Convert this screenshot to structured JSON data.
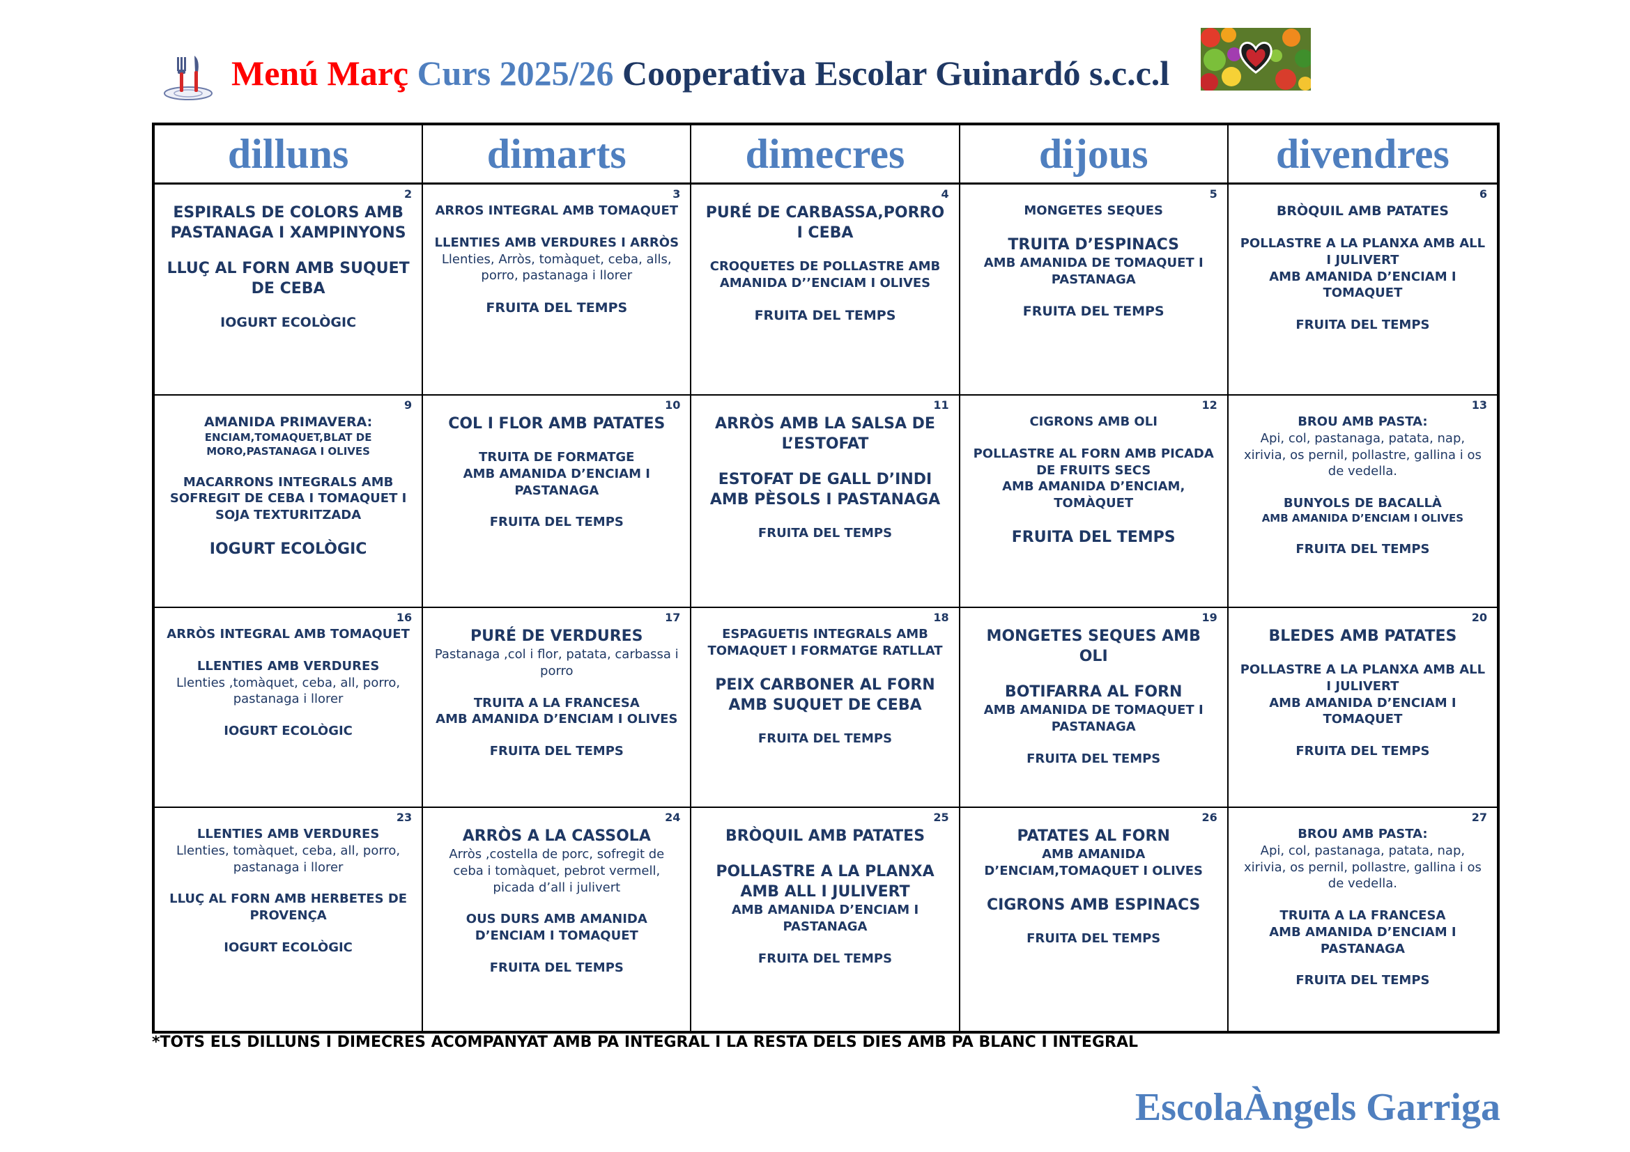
{
  "header": {
    "title_part1": "Menú Març",
    "title_part2": "Curs 2025/26",
    "title_part3": "Cooperativa Escolar Guinardó s.c.c.l",
    "left_icon": "cutlery-plate-icon",
    "right_icon": "vegetables-heart-icon"
  },
  "days": [
    "dilluns",
    "dimarts",
    "dimecres",
    "dijous",
    "divendres"
  ],
  "weeks": [
    [
      {
        "num": "2",
        "items": [
          {
            "t": "ESPIRALS DE COLORS AMB PASTANAGA I XAMPINYONS",
            "s": "L"
          },
          {
            "gap": 1
          },
          {
            "t": "LLUÇ AL FORN AMB SUQUET DE CEBA",
            "s": "L"
          },
          {
            "gap": 1
          },
          {
            "t": "IOGURT ECOLÒGIC",
            "s": "M"
          }
        ]
      },
      {
        "num": "3",
        "items": [
          {
            "t": "ARROS INTEGRAL AMB TOMAQUET",
            "s": "S"
          },
          {
            "gap": 1
          },
          {
            "t": "LLENTIES AMB VERDURES I ARRÒS",
            "s": "S"
          },
          {
            "t": "Llenties, Arròs, tomàquet, ceba, alls, porro, pastanaga i llorer",
            "s": "D"
          },
          {
            "gap": 1
          },
          {
            "t": "FRUITA DEL TEMPS",
            "s": "M"
          }
        ]
      },
      {
        "num": "4",
        "items": [
          {
            "t": "PURÉ DE CARBASSA,PORRO I CEBA",
            "s": "L"
          },
          {
            "gap": 1
          },
          {
            "t": "CROQUETES DE POLLASTRE AMB",
            "s": "S"
          },
          {
            "t": "AMANIDA D’’ENCIAM I OLIVES",
            "s": "S"
          },
          {
            "gap": 1
          },
          {
            "t": "FRUITA DEL TEMPS",
            "s": "M"
          }
        ]
      },
      {
        "num": "5",
        "items": [
          {
            "t": "MONGETES SEQUES",
            "s": "S"
          },
          {
            "gap": 1
          },
          {
            "t": "TRUITA D’ESPINACS",
            "s": "L"
          },
          {
            "t": "AMB AMANIDA DE TOMAQUET I PASTANAGA",
            "s": "S"
          },
          {
            "gap": 1
          },
          {
            "t": "FRUITA DEL TEMPS",
            "s": "M"
          }
        ]
      },
      {
        "num": "6",
        "items": [
          {
            "t": "BRÒQUIL AMB PATATES",
            "s": "M"
          },
          {
            "gap": 1
          },
          {
            "t": "POLLASTRE A LA PLANXA   AMB ALL I JULIVERT",
            "s": "S"
          },
          {
            "t": "AMB AMANIDA D’ENCIAM I TOMAQUET",
            "s": "S"
          },
          {
            "gap": 1
          },
          {
            "t": "FRUITA DEL TEMPS",
            "s": "S"
          }
        ]
      }
    ],
    [
      {
        "num": "9",
        "items": [
          {
            "t": "AMANIDA PRIMAVERA:",
            "s": "M"
          },
          {
            "t": "ENCIAM,TOMAQUET,BLAT DE MORO,PASTANAGA I OLIVES",
            "s": "T"
          },
          {
            "gap": 1
          },
          {
            "t": "MACARRONS INTEGRALS AMB SOFREGIT DE CEBA I TOMAQUET I SOJA TEXTURITZADA",
            "s": "S"
          },
          {
            "gap": 1
          },
          {
            "t": "IOGURT ECOLÒGIC",
            "s": "L"
          }
        ]
      },
      {
        "num": "10",
        "items": [
          {
            "t": "COL I FLOR AMB PATATES",
            "s": "L"
          },
          {
            "gap": 1
          },
          {
            "t": "TRUITA DE FORMATGE",
            "s": "S"
          },
          {
            "t": "AMB AMANIDA D’ENCIAM I PASTANAGA",
            "s": "S"
          },
          {
            "gap": 1
          },
          {
            "t": "FRUITA DEL TEMPS",
            "s": "S"
          }
        ]
      },
      {
        "num": "11",
        "items": [
          {
            "t": "ARRÒS AMB LA SALSA DE L’ESTOFAT",
            "s": "L"
          },
          {
            "gap": 1
          },
          {
            "t": "ESTOFAT DE GALL D’INDI AMB PÈSOLS I PASTANAGA",
            "s": "L"
          },
          {
            "gap": 1
          },
          {
            "t": "FRUITA DEL TEMPS",
            "s": "S"
          }
        ]
      },
      {
        "num": "12",
        "items": [
          {
            "t": "CIGRONS AMB OLI",
            "s": "S"
          },
          {
            "gap": 1
          },
          {
            "t": "POLLASTRE AL FORN AMB PICADA DE FRUITS SECS",
            "s": "S"
          },
          {
            "t": "AMB AMANIDA D’ENCIAM, TOMÀQUET",
            "s": "S"
          },
          {
            "gap": 1
          },
          {
            "t": "FRUITA DEL TEMPS",
            "s": "L"
          }
        ]
      },
      {
        "num": "13",
        "items": [
          {
            "t": "BROU AMB PASTA:",
            "s": "S"
          },
          {
            "t": "Api, col, pastanaga, patata, nap, xirivia, os pernil, pollastre, gallina i os de vedella.",
            "s": "D"
          },
          {
            "gap": 1
          },
          {
            "t": "BUNYOLS DE BACALLÀ",
            "s": "S"
          },
          {
            "t": "AMB AMANIDA D’ENCIAM I OLIVES",
            "s": "T"
          },
          {
            "gap": 1
          },
          {
            "t": "FRUITA DEL TEMPS",
            "s": "S"
          }
        ]
      }
    ],
    [
      {
        "num": "16",
        "items": [
          {
            "t": "ARRÒS INTEGRAL AMB TOMAQUET",
            "s": "S"
          },
          {
            "gap": 1
          },
          {
            "t": "LLENTIES AMB VERDURES",
            "s": "S"
          },
          {
            "t": "Llenties ,tomàquet, ceba, all, porro, pastanaga i llorer",
            "s": "D"
          },
          {
            "gap": 1
          },
          {
            "t": "IOGURT ECOLÒGIC",
            "s": "S"
          }
        ]
      },
      {
        "num": "17",
        "items": [
          {
            "t": "PURÉ DE VERDURES",
            "s": "L"
          },
          {
            "t": "Pastanaga ,col i flor, patata, carbassa i porro",
            "s": "D"
          },
          {
            "gap": 1
          },
          {
            "t": "TRUITA A LA FRANCESA",
            "s": "S"
          },
          {
            "t": "AMB AMANIDA D’ENCIAM I OLIVES",
            "s": "S"
          },
          {
            "gap": 1
          },
          {
            "t": "FRUITA DEL TEMPS",
            "s": "S"
          }
        ]
      },
      {
        "num": "18",
        "items": [
          {
            "t": "ESPAGUETIS INTEGRALS AMB TOMAQUET I  FORMATGE RATLLAT",
            "s": "S"
          },
          {
            "gap": 1
          },
          {
            "t": "PEIX CARBONER AL FORN AMB SUQUET DE CEBA",
            "s": "L"
          },
          {
            "gap": 1
          },
          {
            "t": "FRUITA DEL TEMPS",
            "s": "S"
          }
        ]
      },
      {
        "num": "19",
        "items": [
          {
            "t": "MONGETES SEQUES AMB OLI",
            "s": "L"
          },
          {
            "gap": 1
          },
          {
            "t": "BOTIFARRA AL FORN",
            "s": "L"
          },
          {
            "t": "AMB AMANIDA DE TOMAQUET I PASTANAGA",
            "s": "S"
          },
          {
            "gap": 1
          },
          {
            "t": "FRUITA DEL TEMPS",
            "s": "S"
          }
        ]
      },
      {
        "num": "20",
        "items": [
          {
            "t": "BLEDES AMB PATATES",
            "s": "L"
          },
          {
            "gap": 1
          },
          {
            "t": "POLLASTRE A LA PLANXA AMB ALL I JULIVERT",
            "s": "S"
          },
          {
            "t": "AMB AMANIDA D’ENCIAM I TOMAQUET",
            "s": "S"
          },
          {
            "gap": 1
          },
          {
            "t": "FRUITA DEL TEMPS",
            "s": "S"
          }
        ]
      }
    ],
    [
      {
        "num": "23",
        "items": [
          {
            "t": "LLENTIES AMB VERDURES",
            "s": "S"
          },
          {
            "t": "Llenties, tomàquet, ceba, all, porro, pastanaga i llorer",
            "s": "D"
          },
          {
            "gap": 1
          },
          {
            "t": "LLUÇ AL FORN AMB HERBETES DE PROVENÇA",
            "s": "S"
          },
          {
            "gap": 1
          },
          {
            "t": "IOGURT ECOLÒGIC",
            "s": "S"
          }
        ]
      },
      {
        "num": "24",
        "items": [
          {
            "t": "ARRÒS A LA CASSOLA",
            "s": "L"
          },
          {
            "t": "Arròs ,costella de porc, sofregit de ceba i tomàquet, pebrot vermell, picada d’all i julivert",
            "s": "D"
          },
          {
            "gap": 1
          },
          {
            "t": "OUS DURS AMB AMANIDA D’ENCIAM I TOMAQUET",
            "s": "S"
          },
          {
            "gap": 1
          },
          {
            "t": "FRUITA DEL TEMPS",
            "s": "S"
          }
        ]
      },
      {
        "num": "25",
        "items": [
          {
            "t": "BRÒQUIL AMB PATATES",
            "s": "L"
          },
          {
            "gap": 1
          },
          {
            "t": "POLLASTRE A LA PLANXA AMB ALL I JULIVERT",
            "s": "L"
          },
          {
            "t": "AMB AMANIDA D’ENCIAM I PASTANAGA",
            "s": "S"
          },
          {
            "gap": 1
          },
          {
            "t": "FRUITA DEL TEMPS",
            "s": "S"
          }
        ]
      },
      {
        "num": "26",
        "items": [
          {
            "t": "PATATES AL FORN",
            "s": "L"
          },
          {
            "t": "AMB AMANIDA D’ENCIAM,TOMAQUET I OLIVES",
            "s": "S"
          },
          {
            "gap": 1
          },
          {
            "t": "CIGRONS AMB ESPINACS",
            "s": "L"
          },
          {
            "gap": 1
          },
          {
            "t": "FRUITA DEL TEMPS",
            "s": "S"
          }
        ]
      },
      {
        "num": "27",
        "items": [
          {
            "t": "BROU AMB PASTA:",
            "s": "S"
          },
          {
            "t": "Api, col, pastanaga, patata, nap, xirivia, os pernil, pollastre,  gallina i os de vedella.",
            "s": "D"
          },
          {
            "gap": 1
          },
          {
            "t": "TRUITA A LA FRANCESA",
            "s": "S"
          },
          {
            "t": "AMB AMANIDA D’ENCIAM I PASTANAGA",
            "s": "S"
          },
          {
            "gap": 1
          },
          {
            "t": "FRUITA DEL TEMPS",
            "s": "S"
          }
        ]
      }
    ]
  ],
  "footer_note": "*TOTS ELS DILLUNS I DIMECRES ACOMPANYAT AMB PA INTEGRAL I LA RESTA DELS DIES AMB PA BLANC I INTEGRAL",
  "school_name": "EscolaÀngels Garriga"
}
